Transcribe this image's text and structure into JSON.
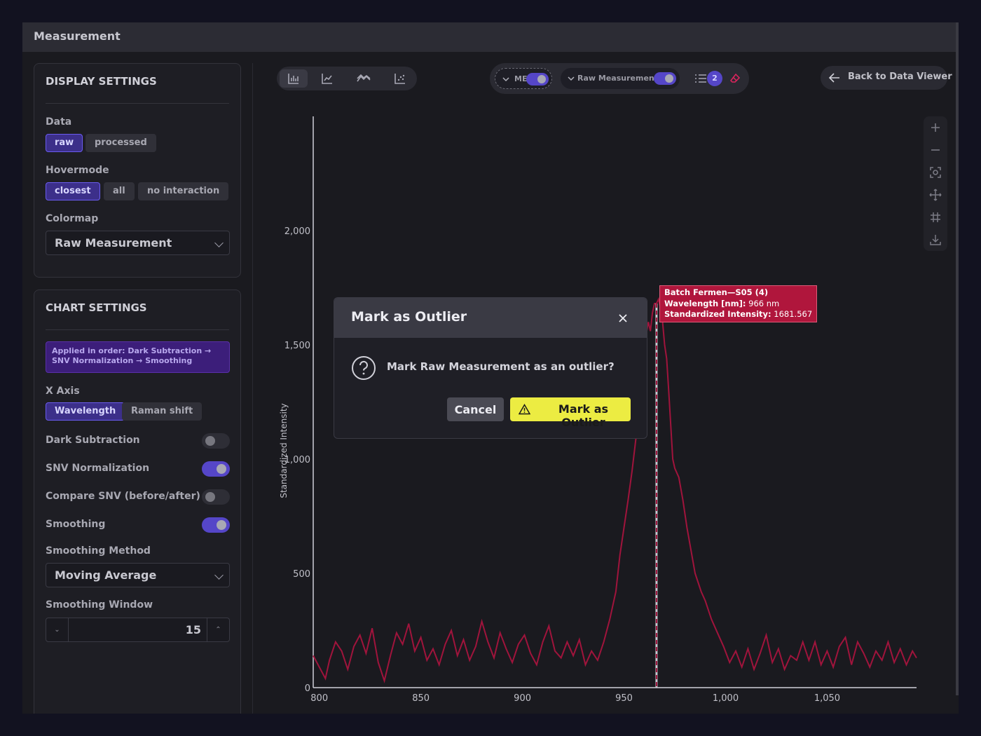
{
  "window": {
    "title": "Measurement"
  },
  "display_settings": {
    "heading": "DISPLAY SETTINGS",
    "data_label": "Data",
    "data_options": [
      "raw",
      "processed"
    ],
    "data_selected": "raw",
    "hovermode_label": "Hovermode",
    "hovermode_options": [
      "closest",
      "all",
      "no interaction"
    ],
    "hovermode_selected": "closest",
    "colormap_label": "Colormap",
    "colormap_value": "Raw Measurement"
  },
  "chart_settings": {
    "heading": "CHART SETTINGS",
    "pipeline_note": "Applied in order: Dark Subtraction → SNV Normalization → Smoothing",
    "x_axis_label": "X Axis",
    "x_axis_options": [
      "Wavelength",
      "Raman shift"
    ],
    "x_axis_selected": "Wavelength",
    "toggles": [
      {
        "label": "Dark Subtraction",
        "on": false
      },
      {
        "label": "SNV Normalization",
        "on": true
      },
      {
        "label": "Compare SNV (before/after)",
        "on": false
      },
      {
        "label": "Smoothing",
        "on": true
      }
    ],
    "smoothing_method_label": "Smoothing Method",
    "smoothing_method_value": "Moving Average",
    "smoothing_window_label": "Smoothing Window",
    "smoothing_window_value": "15"
  },
  "toolbar": {
    "chart_types": [
      "bar-chart-icon",
      "line-chart-icon",
      "multi-line-icon",
      "scatter-icon"
    ],
    "me_label": "ME",
    "raw_label": "Raw Measurements",
    "legend_count": "2",
    "back_label": "Back to Data Viewer"
  },
  "modebar": [
    "zoom-in-icon",
    "zoom-out-icon",
    "autoscale-icon",
    "pan-icon",
    "grid-icon",
    "download-icon"
  ],
  "tooltip": {
    "series": "Batch Fermen—S05 (4)",
    "wavelength_label": "Wavelength [nm]:",
    "wavelength_value": "966 nm",
    "intensity_label": "Standardized Intensity:",
    "intensity_value": "1681.567"
  },
  "dialog": {
    "title": "Mark as Outlier",
    "message": "Mark Raw Measurement as an outlier?",
    "cancel_label": "Cancel",
    "confirm_label": "Mark as Outlier"
  },
  "colors": {
    "accent": "#5546c8",
    "series": "#a0143c",
    "confirm": "#ecec42"
  },
  "chart_data": {
    "type": "line",
    "ylabel": "Standardized Intensity",
    "xlabel": "",
    "xlim": [
      797,
      1094
    ],
    "ylim": [
      0,
      2500
    ],
    "x_ticks": [
      800,
      850,
      900,
      950,
      1000,
      1050
    ],
    "x_tick_labels": [
      "800",
      "850",
      "900",
      "950",
      "1,000",
      "1,050"
    ],
    "y_ticks": [
      0,
      500,
      1000,
      1500,
      2000
    ],
    "y_tick_labels": [
      "0",
      "500",
      "1,000",
      "1,500",
      "2,000"
    ],
    "hover_x": 966,
    "series": [
      {
        "name": "Batch Fermen—S05 (4)",
        "points": [
          [
            797,
            140
          ],
          [
            800,
            90
          ],
          [
            803,
            40
          ],
          [
            805,
            120
          ],
          [
            808,
            200
          ],
          [
            811,
            160
          ],
          [
            814,
            80
          ],
          [
            817,
            180
          ],
          [
            820,
            230
          ],
          [
            823,
            150
          ],
          [
            826,
            260
          ],
          [
            829,
            110
          ],
          [
            832,
            30
          ],
          [
            835,
            140
          ],
          [
            838,
            240
          ],
          [
            841,
            190
          ],
          [
            844,
            280
          ],
          [
            847,
            160
          ],
          [
            850,
            220
          ],
          [
            853,
            120
          ],
          [
            856,
            170
          ],
          [
            859,
            100
          ],
          [
            862,
            190
          ],
          [
            865,
            250
          ],
          [
            868,
            140
          ],
          [
            871,
            210
          ],
          [
            874,
            120
          ],
          [
            877,
            180
          ],
          [
            880,
            290
          ],
          [
            883,
            200
          ],
          [
            886,
            130
          ],
          [
            889,
            240
          ],
          [
            892,
            170
          ],
          [
            895,
            110
          ],
          [
            898,
            190
          ],
          [
            901,
            230
          ],
          [
            904,
            150
          ],
          [
            907,
            100
          ],
          [
            910,
            200
          ],
          [
            913,
            270
          ],
          [
            916,
            160
          ],
          [
            919,
            130
          ],
          [
            922,
            200
          ],
          [
            925,
            140
          ],
          [
            928,
            210
          ],
          [
            931,
            100
          ],
          [
            934,
            160
          ],
          [
            937,
            120
          ],
          [
            940,
            200
          ],
          [
            943,
            300
          ],
          [
            946,
            420
          ],
          [
            948,
            580
          ],
          [
            950,
            700
          ],
          [
            952,
            820
          ],
          [
            954,
            950
          ],
          [
            956,
            1100
          ],
          [
            958,
            1300
          ],
          [
            960,
            1500
          ],
          [
            962,
            1600
          ],
          [
            963,
            1560
          ],
          [
            964,
            1640
          ],
          [
            965,
            1681
          ],
          [
            966,
            1681
          ],
          [
            967,
            1700
          ],
          [
            968,
            1660
          ],
          [
            969,
            1600
          ],
          [
            970,
            1500
          ],
          [
            971,
            1440
          ],
          [
            972,
            1300
          ],
          [
            973,
            1150
          ],
          [
            974,
            1000
          ],
          [
            975,
            960
          ],
          [
            977,
            920
          ],
          [
            979,
            820
          ],
          [
            981,
            700
          ],
          [
            983,
            600
          ],
          [
            985,
            500
          ],
          [
            988,
            420
          ],
          [
            990,
            380
          ],
          [
            993,
            300
          ],
          [
            996,
            240
          ],
          [
            999,
            180
          ],
          [
            1002,
            110
          ],
          [
            1005,
            160
          ],
          [
            1008,
            90
          ],
          [
            1011,
            170
          ],
          [
            1014,
            80
          ],
          [
            1017,
            150
          ],
          [
            1020,
            230
          ],
          [
            1023,
            110
          ],
          [
            1026,
            170
          ],
          [
            1029,
            80
          ],
          [
            1032,
            140
          ],
          [
            1035,
            120
          ],
          [
            1038,
            200
          ],
          [
            1041,
            120
          ],
          [
            1044,
            200
          ],
          [
            1047,
            100
          ],
          [
            1050,
            160
          ],
          [
            1053,
            90
          ],
          [
            1056,
            180
          ],
          [
            1059,
            220
          ],
          [
            1062,
            100
          ],
          [
            1065,
            200
          ],
          [
            1068,
            150
          ],
          [
            1071,
            90
          ],
          [
            1074,
            160
          ],
          [
            1077,
            120
          ],
          [
            1080,
            200
          ],
          [
            1083,
            110
          ],
          [
            1086,
            170
          ],
          [
            1089,
            100
          ],
          [
            1092,
            160
          ],
          [
            1094,
            130
          ]
        ]
      }
    ]
  }
}
